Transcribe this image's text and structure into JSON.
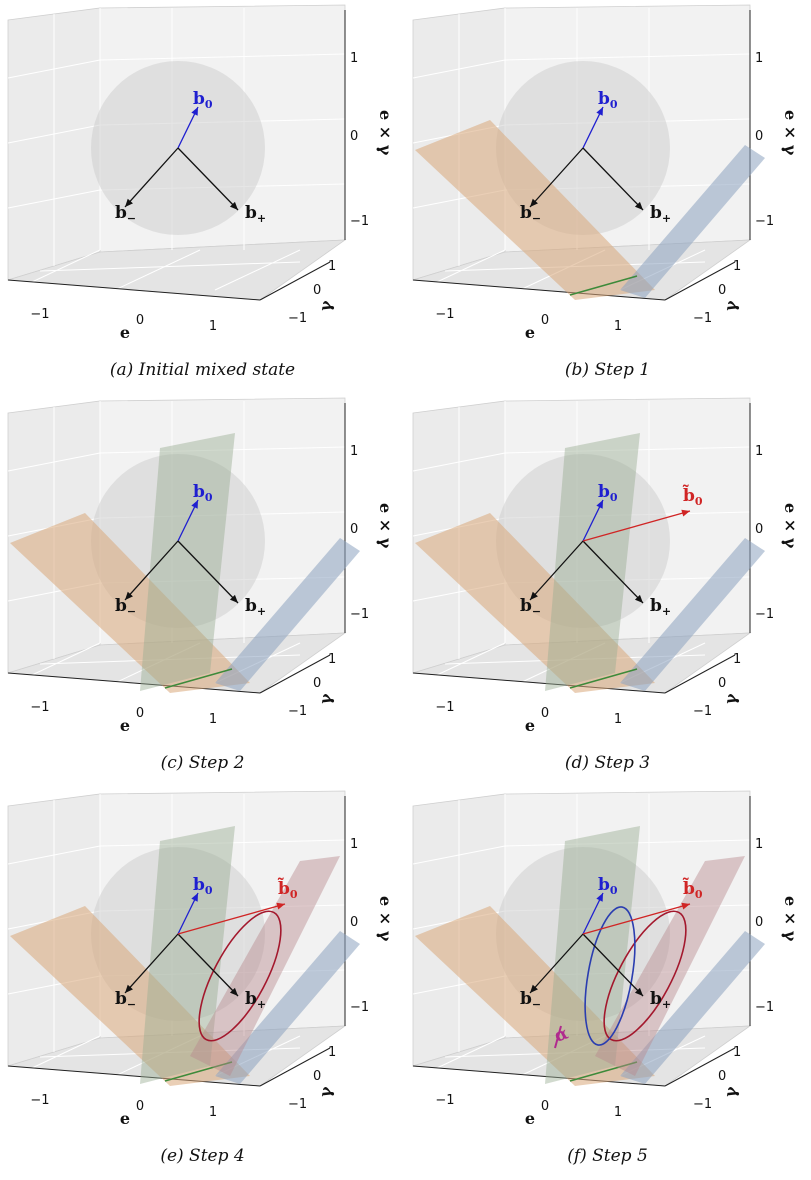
{
  "captions": [
    "(a) Initial mixed state",
    "(b) Step 1",
    "(c) Step 2",
    "(d) Step 3",
    "(e) Step 4",
    "(f) Step 5"
  ],
  "axes": {
    "e_label": "e",
    "gamma_label": "γ",
    "exg_label": "e × γ",
    "e_ticks": [
      "−1",
      "0",
      "1"
    ],
    "gamma_ticks": [
      "1",
      "0",
      "−1"
    ],
    "z_ticks": [
      "1",
      "0",
      "−1"
    ]
  },
  "vectors": {
    "b0_main": "b",
    "b0_sub": "0",
    "bminus_main": "b",
    "bminus_sub": "−",
    "bplus_main": "b",
    "bplus_sub": "+",
    "bt_main": "b̃",
    "bt_sub": "0"
  },
  "alpha_label": "α",
  "colors": {
    "b0": "#1f1fd0",
    "btilde": "#d02525",
    "sphere": "#c8c8c8",
    "orange_plane": "#d9a77a",
    "blue_plane": "#8da3bf",
    "green_plane": "#98ae93",
    "pink_plane": "#b88a8e",
    "ellipse_red": "#a3182d",
    "ellipse_blue": "#2a3db0",
    "alpha": "#b02a8e"
  }
}
